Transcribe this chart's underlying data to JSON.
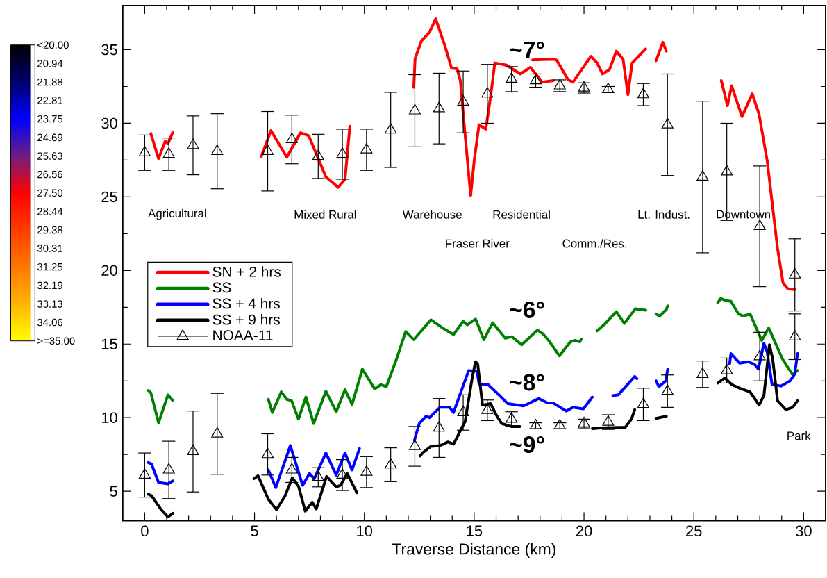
{
  "chart_data": {
    "type": "line",
    "xlabel": "Traverse Distance (km)",
    "xlim": [
      -1,
      31
    ],
    "ylim": [
      3,
      38
    ],
    "xticks": [
      0,
      5,
      10,
      15,
      20,
      25,
      30
    ],
    "yticks": [
      5,
      10,
      15,
      20,
      25,
      30,
      35
    ],
    "legend": "left",
    "clim": [
      35,
      20
    ],
    "cticks": [
      {
        "value": 20,
        "label": "<20.00"
      },
      {
        "value": 20.94,
        "label": "20.94"
      },
      {
        "value": 21.88,
        "label": "21.88"
      },
      {
        "value": 22.81,
        "label": "22.81"
      },
      {
        "value": 23.75,
        "label": "23.75"
      },
      {
        "value": 24.69,
        "label": "24.69"
      },
      {
        "value": 25.63,
        "label": "25.63"
      },
      {
        "value": 26.56,
        "label": "26.56"
      },
      {
        "value": 27.5,
        "label": "27.50"
      },
      {
        "value": 28.44,
        "label": "28.44"
      },
      {
        "value": 29.38,
        "label": "29.38"
      },
      {
        "value": 30.31,
        "label": "30.31"
      },
      {
        "value": 31.25,
        "label": "31.25"
      },
      {
        "value": 32.19,
        "label": "32.19"
      },
      {
        "value": 33.13,
        "label": "33.13"
      },
      {
        "value": 34.06,
        "label": "34.06"
      },
      {
        "value": 35,
        "label": ">=35.00"
      }
    ],
    "annotations": [
      "~7°",
      "~6°",
      "~8°",
      "~9°",
      "Agricultural",
      "Mixed Rural",
      "Warehouse",
      "Residential",
      "Lt. Indust.",
      "Downtown",
      "Fraser River",
      "Comm./Res.",
      "Park"
    ],
    "series": [
      {
        "name": "SN + 2 hrs",
        "color": "#ff0000",
        "x": [
          0.28,
          0.63,
          0.94,
          1.06,
          1.28,
          null,
          5.31,
          5.75,
          6.47,
          7.09,
          7.47,
          8.25,
          8.81,
          9.12,
          9.34,
          null,
          12.25,
          12.31,
          12.6,
          12.97,
          13.25,
          13.66,
          13.97,
          14.22,
          14.37,
          14.6,
          14.84,
          15.0,
          15.22,
          15.53,
          15.75,
          15.94,
          16.47,
          17.1,
          17.56,
          18.1,
          18.6,
          null,
          17.66,
          18.6,
          18.75,
          19.28,
          19.5,
          20.31,
          20.6,
          20.84,
          21.16,
          21.47,
          21.78,
          22.0,
          22.19,
          22.81,
          null,
          23.28,
          23.59,
          23.75,
          null,
          26.25,
          26.53,
          26.72,
          27.19,
          27.66,
          27.97,
          28.34,
          28.81,
          29.06,
          29.28,
          29.59
        ],
        "values": [
          29.3,
          27.6,
          28.8,
          28.6,
          29.4,
          null,
          27.75,
          29.5,
          27.7,
          29.35,
          29.15,
          26.35,
          25.65,
          26.2,
          29.8,
          null,
          32.45,
          34.4,
          35.6,
          36.2,
          37.1,
          35.3,
          33.75,
          33.7,
          32.9,
          29.0,
          25.1,
          27.45,
          29.9,
          29.6,
          31.85,
          34.1,
          33.95,
          33.35,
          33.8,
          32.8,
          32.9,
          null,
          34.3,
          34.35,
          34.3,
          32.95,
          32.8,
          34.55,
          34.1,
          33.35,
          33.65,
          34.9,
          34.35,
          31.95,
          34.1,
          35.05,
          null,
          34.25,
          35.5,
          34.9,
          null,
          32.9,
          31.2,
          32.55,
          30.45,
          32.0,
          30.6,
          27.45,
          21.5,
          19.15,
          18.75,
          18.7
        ]
      },
      {
        "name": "SS",
        "color": "#008000",
        "x": [
          0.16,
          0.28,
          0.63,
          1.06,
          1.28,
          null,
          5.63,
          5.81,
          6.22,
          6.47,
          6.69,
          7.0,
          7.34,
          7.69,
          8.25,
          8.72,
          9.12,
          9.44,
          9.91,
          10.47,
          10.75,
          11.0,
          11.47,
          11.88,
          12.25,
          13.03,
          13.66,
          14.06,
          14.5,
          14.69,
          15.06,
          15.44,
          15.84,
          16.41,
          16.72,
          17.16,
          17.88,
          18.13,
          18.44,
          18.88,
          19.38,
          19.59,
          19.81,
          19.88,
          null,
          20.59,
          20.94,
          21.47,
          21.84,
          22.34,
          22.81,
          null,
          23.28,
          23.44,
          23.75,
          23.81,
          null,
          26.09,
          26.22,
          26.47,
          26.69,
          27.03,
          27.25,
          27.56,
          28.09,
          28.41,
          29.03,
          29.5,
          29.72
        ],
        "values": [
          11.85,
          11.7,
          9.65,
          11.55,
          11.15,
          null,
          11.25,
          10.35,
          11.75,
          11.25,
          11.15,
          9.9,
          11.4,
          9.6,
          11.8,
          10.4,
          11.9,
          10.9,
          13.3,
          11.95,
          12.25,
          12.1,
          14.0,
          15.85,
          15.3,
          16.65,
          16.0,
          15.65,
          16.55,
          16.3,
          16.7,
          15.3,
          16.45,
          15.4,
          15.5,
          14.95,
          15.95,
          15.7,
          15.15,
          14.2,
          15.15,
          15.25,
          15.15,
          15.35,
          null,
          15.9,
          16.35,
          17.2,
          16.4,
          17.4,
          17.3,
          null,
          17.05,
          16.9,
          17.35,
          17.6,
          null,
          17.8,
          18.1,
          17.95,
          17.9,
          17.05,
          16.9,
          17.05,
          15.25,
          16.1,
          14.0,
          12.9,
          13.2
        ]
      },
      {
        "name": "SS + 4 hrs",
        "color": "#0000ff",
        "x": [
          0.16,
          0.31,
          0.63,
          1.06,
          1.28,
          null,
          5.63,
          5.97,
          6.63,
          7.19,
          7.5,
          7.72,
          8.25,
          8.72,
          9.12,
          9.44,
          9.78,
          null,
          12.28,
          12.5,
          12.81,
          12.97,
          13.44,
          13.88,
          14.06,
          14.75,
          15.13,
          15.22,
          15.63,
          16.09,
          16.53,
          17.25,
          17.94,
          18.34,
          18.59,
          19.19,
          19.5,
          19.97,
          20.38,
          null,
          21.31,
          21.56,
          22.31,
          22.41,
          null,
          23.28,
          23.41,
          23.72,
          23.81,
          null,
          26.63,
          26.69,
          27.09,
          27.5,
          27.78,
          27.94,
          28.19,
          28.34,
          28.56,
          28.97,
          29.38,
          29.59,
          29.72
        ],
        "values": [
          6.95,
          6.85,
          5.6,
          5.5,
          5.7,
          null,
          6.45,
          5.25,
          8.1,
          5.4,
          6.2,
          5.85,
          7.6,
          6.1,
          7.6,
          6.45,
          7.9,
          null,
          8.45,
          9.6,
          10.1,
          10.0,
          10.7,
          10.7,
          10.35,
          13.2,
          13.15,
          12.3,
          12.25,
          11.6,
          10.95,
          10.8,
          11.3,
          11.0,
          11.0,
          10.45,
          10.7,
          10.6,
          11.4,
          null,
          11.5,
          11.55,
          12.8,
          12.65,
          null,
          12.5,
          12.1,
          12.5,
          13.3,
          null,
          13.65,
          14.35,
          13.7,
          13.8,
          13.6,
          13.3,
          15.05,
          14.45,
          12.25,
          12.15,
          12.5,
          12.95,
          14.35
        ]
      },
      {
        "name": "SS + 9 hrs",
        "color": "#000000",
        "x": [
          0.16,
          0.31,
          0.75,
          1.06,
          1.28,
          null,
          4.97,
          5.16,
          5.63,
          6.0,
          6.38,
          6.72,
          7.0,
          7.31,
          7.63,
          7.81,
          8.28,
          8.72,
          8.91,
          9.22,
          9.66,
          null,
          12.53,
          12.69,
          13.03,
          13.44,
          13.81,
          14.06,
          14.59,
          14.91,
          15.06,
          15.16,
          15.38,
          15.75,
          16.0,
          16.25,
          16.69,
          17.09,
          null,
          20.38,
          20.75,
          21.88,
          22.16,
          22.31,
          null,
          23.28,
          23.75,
          null,
          26.09,
          26.41,
          26.72,
          27.09,
          27.56,
          27.97,
          28.19,
          28.44,
          28.59,
          28.81,
          29.19,
          29.5,
          29.72
        ],
        "values": [
          4.8,
          4.7,
          3.75,
          3.25,
          3.5,
          null,
          5.85,
          6.05,
          4.45,
          3.75,
          4.65,
          5.9,
          5.35,
          3.65,
          4.25,
          3.8,
          6.0,
          5.3,
          5.4,
          6.2,
          4.9,
          null,
          7.4,
          7.65,
          8.05,
          8.1,
          8.35,
          8.2,
          9.75,
          12.7,
          13.8,
          13.65,
          10.85,
          10.95,
          10.2,
          9.6,
          9.4,
          9.4,
          null,
          9.25,
          9.3,
          9.35,
          9.9,
          10.55,
          null,
          9.95,
          10.1,
          null,
          12.35,
          12.7,
          12.25,
          12.0,
          11.75,
          10.85,
          11.5,
          14.95,
          14.0,
          11.15,
          10.55,
          10.7,
          11.15
        ]
      },
      {
        "name": "NOAA-11",
        "type": "scatter",
        "marker": "triangle",
        "color": "#000000",
        "x": [
          0,
          1.1,
          2.2,
          3.3,
          5.6,
          6.7,
          7.9,
          9.0,
          10.1,
          11.2,
          12.3,
          13.4,
          14.5,
          15.6,
          16.7,
          17.8,
          18.9,
          20.0,
          21.1,
          22.7,
          23.8,
          25.4,
          26.5,
          28.0,
          29.6,
          29.6,
          0,
          1.1,
          2.2,
          3.3,
          5.6,
          6.7,
          7.9,
          9.0,
          10.1,
          11.2,
          12.3,
          13.4,
          14.5,
          15.6,
          16.7,
          17.8,
          18.9,
          20.0,
          21.1,
          22.7,
          23.8,
          25.4,
          26.5,
          28.0
        ],
        "values": [
          28.0,
          27.9,
          28.5,
          28.1,
          28.1,
          28.9,
          27.75,
          27.9,
          28.2,
          29.55,
          30.85,
          31.0,
          31.45,
          32.0,
          33.0,
          32.9,
          32.55,
          32.4,
          32.3,
          31.95,
          29.9,
          26.35,
          26.7,
          23.0,
          19.7,
          15.5,
          6.1,
          6.45,
          7.7,
          8.9,
          7.5,
          6.45,
          5.95,
          6.1,
          6.3,
          6.8,
          8.05,
          9.3,
          10.35,
          10.5,
          9.9,
          9.45,
          9.45,
          9.6,
          9.7,
          10.9,
          11.8,
          12.95,
          13.2,
          14.15
        ],
        "errors": [
          1.2,
          1.1,
          2.0,
          2.55,
          2.7,
          1.65,
          1.5,
          1.7,
          1.4,
          2.55,
          2.45,
          2.4,
          2.1,
          2.0,
          0.85,
          0.45,
          0.4,
          0.35,
          0.2,
          0.75,
          3.45,
          5.15,
          3.3,
          4.1,
          2.45,
          1.55,
          1.5,
          1.95,
          2.75,
          2.75,
          1.4,
          0.85,
          0.65,
          1.05,
          1.05,
          1.15,
          1.35,
          2.0,
          1.2,
          0.7,
          0.5,
          0.2,
          0.2,
          0.3,
          0.5,
          1.1,
          1.1,
          0.9,
          0.85,
          1.65
        ]
      }
    ]
  }
}
